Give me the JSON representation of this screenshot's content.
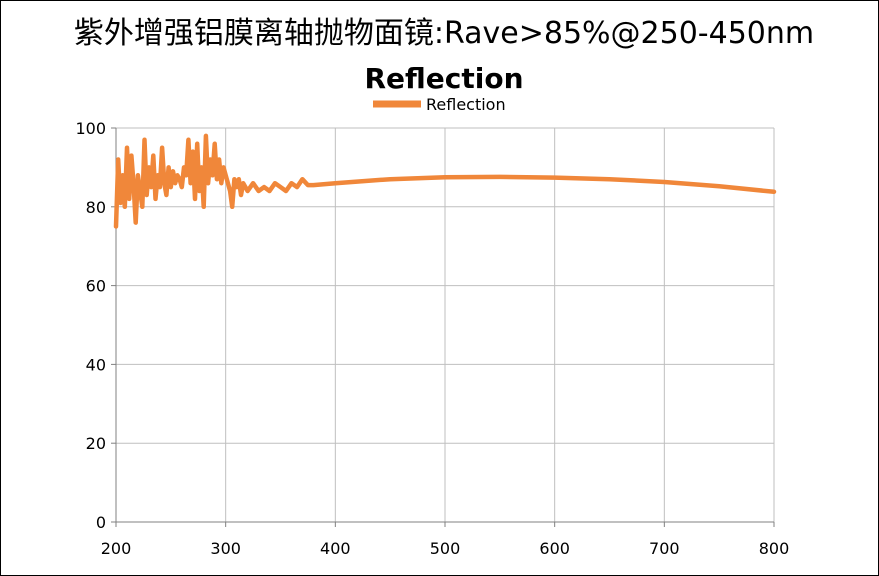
{
  "heading": "紫外增强铝膜离轴抛物面镜:Rave>85%@250-450nm",
  "chart_data": {
    "type": "line",
    "title": "Reflection",
    "xlabel": "",
    "ylabel": "",
    "xlim": [
      200,
      800
    ],
    "ylim": [
      0,
      100
    ],
    "x_ticks": [
      200,
      300,
      400,
      500,
      600,
      700,
      800
    ],
    "y_ticks": [
      0,
      20,
      40,
      60,
      80,
      100
    ],
    "grid": true,
    "legend": "top-center",
    "series": [
      {
        "name": "Reflection",
        "color": "#F0873A",
        "x": [
          200,
          202,
          204,
          206,
          208,
          210,
          212,
          214,
          216,
          218,
          220,
          222,
          224,
          226,
          228,
          230,
          232,
          234,
          236,
          238,
          240,
          242,
          244,
          246,
          248,
          250,
          252,
          254,
          256,
          258,
          260,
          262,
          264,
          266,
          268,
          270,
          272,
          274,
          276,
          278,
          280,
          282,
          284,
          286,
          288,
          290,
          292,
          294,
          296,
          298,
          300,
          302,
          304,
          306,
          308,
          310,
          312,
          314,
          316,
          318,
          320,
          325,
          330,
          335,
          340,
          345,
          350,
          355,
          360,
          365,
          370,
          375,
          380,
          400,
          450,
          500,
          550,
          600,
          650,
          700,
          750,
          800
        ],
        "y": [
          75,
          92,
          81,
          88,
          80,
          95,
          82,
          93,
          86,
          76,
          88,
          84,
          80,
          97,
          83,
          90,
          85,
          93,
          82,
          88,
          85,
          95,
          86,
          83,
          90,
          85,
          89,
          86,
          88,
          87,
          85,
          90,
          88,
          97,
          86,
          94,
          82,
          96,
          84,
          90,
          80,
          98,
          86,
          92,
          88,
          96,
          87,
          92,
          86,
          90,
          88,
          86,
          84,
          80,
          87,
          85,
          87,
          83,
          86,
          85,
          84,
          86,
          84,
          85,
          84,
          86,
          85,
          84,
          86,
          85,
          87,
          85.5,
          85.5,
          86,
          87,
          87.5,
          87.6,
          87.4,
          87,
          86.3,
          85.2,
          83.8
        ]
      }
    ]
  }
}
